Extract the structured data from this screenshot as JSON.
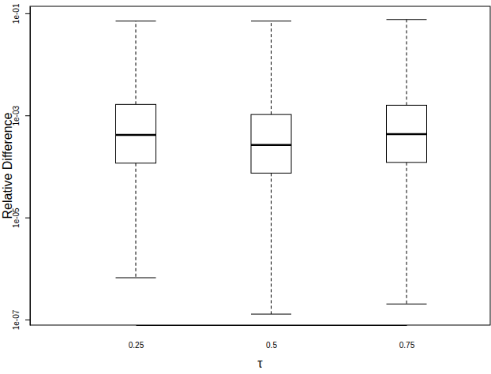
{
  "chart_data": {
    "type": "box",
    "x_label": "τ",
    "y_label": "Relative Difference",
    "categories": [
      "0.25",
      "0.5",
      "0.75"
    ],
    "min": [
      6.6e-07,
      1.28e-07,
      2.02e-07
    ],
    "q1": [
      0.000116,
      7.4e-05,
      0.00012
    ],
    "median": [
      0.000414,
      0.000262,
      0.00043
    ],
    "q3": [
      0.00164,
      0.00104,
      0.00158
    ],
    "max": [
      0.0703,
      0.0703,
      0.0755
    ],
    "log": "y",
    "ylim": [
      7.8e-08,
      0.137
    ],
    "yticks": [
      {
        "value": 1e-07,
        "label": "1e-07"
      },
      {
        "value": 1e-05,
        "label": "1e-05"
      },
      {
        "value": 0.001,
        "label": "1e-03"
      },
      {
        "value": 0.1,
        "label": "1e-01"
      }
    ]
  }
}
